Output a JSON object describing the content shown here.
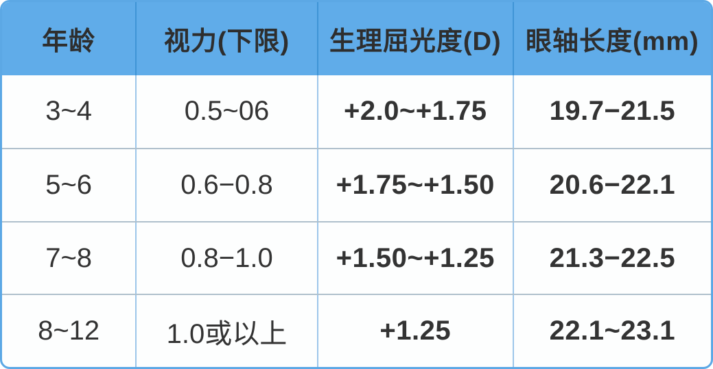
{
  "table": {
    "headers": [
      "年龄",
      "视力(下限)",
      "生理屈光度(D)",
      "眼轴长度(mm)"
    ],
    "rows": [
      [
        "3~4",
        "0.5~06",
        "+2.0~+1.75",
        "19.7−21.5"
      ],
      [
        "5~6",
        "0.6−0.8",
        "+1.75~+1.50",
        "20.6−22.1"
      ],
      [
        "7~8",
        "0.8−1.0",
        "+1.50~+1.25",
        "21.3−22.5"
      ],
      [
        "8~12",
        "1.0或以上",
        "+1.25",
        "22.1~23.1"
      ]
    ]
  },
  "colors": {
    "header_bg": "#60ace9",
    "header_divider": "#3f94d6",
    "body_vertical_divider": "#9cc6ea",
    "body_horizontal_divider": "#afc0cc",
    "outer_border": "#5ca8e5",
    "header_text": "#2e2e2e",
    "body_text": "#333333",
    "body_bg": "#fdfefe"
  },
  "chart_data": {
    "type": "table",
    "columns": [
      "年龄",
      "视力(下限)",
      "生理屈光度(D)",
      "眼轴长度(mm)"
    ],
    "rows": [
      {
        "age": "3~4",
        "vision_lower_limit": "0.5~06",
        "physiological_refraction_D": "+2.0~+1.75",
        "axial_length_mm": "19.7−21.5"
      },
      {
        "age": "5~6",
        "vision_lower_limit": "0.6−0.8",
        "physiological_refraction_D": "+1.75~+1.50",
        "axial_length_mm": "20.6−22.1"
      },
      {
        "age": "7~8",
        "vision_lower_limit": "0.8−1.0",
        "physiological_refraction_D": "+1.50~+1.25",
        "axial_length_mm": "21.3−22.5"
      },
      {
        "age": "8~12",
        "vision_lower_limit": "1.0或以上",
        "physiological_refraction_D": "+1.25",
        "axial_length_mm": "22.1~23.1"
      }
    ]
  }
}
